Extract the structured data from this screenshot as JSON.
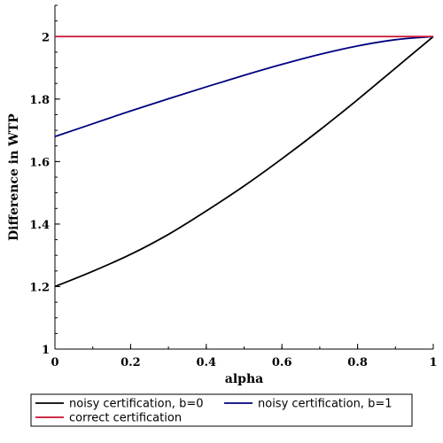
{
  "chart_data": {
    "type": "line",
    "xlabel": "alpha",
    "ylabel": "Difference in WTP",
    "xlim": [
      0,
      1
    ],
    "ylim": [
      1,
      2.1
    ],
    "x_ticks": [
      0,
      0.2,
      0.4,
      0.6,
      0.8,
      1
    ],
    "x_tick_labels": [
      "0",
      "0.2",
      "0.4",
      "0.6",
      "0.8",
      "1"
    ],
    "y_ticks": [
      1,
      1.2,
      1.4,
      1.6,
      1.8,
      2
    ],
    "y_tick_labels": [
      "1",
      "1.2",
      "1.4",
      "1.6",
      "1.8",
      "2"
    ],
    "grid": false,
    "legend_position": "bottom",
    "series": [
      {
        "name": "noisy certification, b=0",
        "color": "#000000",
        "x": [
          0,
          0.1,
          0.2,
          0.3,
          0.4,
          0.5,
          0.6,
          0.7,
          0.8,
          0.9,
          1.0
        ],
        "y": [
          1.2,
          1.249,
          1.303,
          1.367,
          1.442,
          1.522,
          1.609,
          1.701,
          1.798,
          1.899,
          2.0
        ]
      },
      {
        "name": "noisy certification, b=1",
        "color": "#000080",
        "x": [
          0,
          0.1,
          0.2,
          0.3,
          0.4,
          0.5,
          0.6,
          0.7,
          0.8,
          0.9,
          1.0
        ],
        "y": [
          1.68,
          1.721,
          1.762,
          1.801,
          1.839,
          1.876,
          1.911,
          1.943,
          1.97,
          1.99,
          2.0
        ]
      },
      {
        "name": "correct certification",
        "color": "#c8102e",
        "x": [
          0,
          1.0
        ],
        "y": [
          2.0,
          2.0
        ]
      }
    ]
  }
}
